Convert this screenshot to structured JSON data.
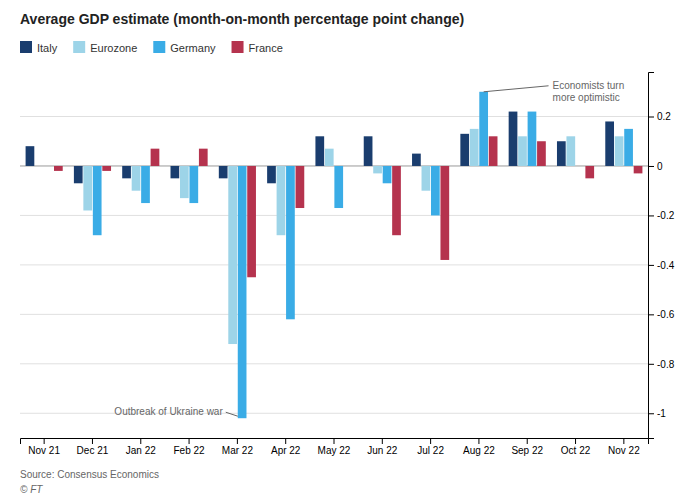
{
  "chart_data": {
    "type": "bar",
    "title": "Average GDP estimate (month-on-month percentage point change)",
    "categories": [
      "Nov 21",
      "Dec 21",
      "Jan 22",
      "Feb 22",
      "Mar 22",
      "Apr 22",
      "May 22",
      "Jun 22",
      "Jul 22",
      "Aug 22",
      "Sep 22",
      "Oct 22",
      "Nov 22"
    ],
    "series": [
      {
        "name": "Italy",
        "color": "#1a3d6e",
        "values": [
          0.08,
          -0.07,
          -0.05,
          -0.05,
          -0.05,
          -0.07,
          0.12,
          0.12,
          0.05,
          0.13,
          0.22,
          0.1,
          0.18
        ]
      },
      {
        "name": "Eurozone",
        "color": "#9dd4e8",
        "values": [
          null,
          -0.18,
          -0.1,
          -0.13,
          -0.72,
          -0.28,
          0.07,
          -0.03,
          -0.1,
          0.15,
          0.12,
          0.12,
          0.12
        ]
      },
      {
        "name": "Germany",
        "color": "#3aace6",
        "values": [
          null,
          -0.28,
          -0.15,
          -0.15,
          -1.02,
          -0.62,
          -0.17,
          -0.07,
          -0.2,
          0.3,
          0.22,
          0,
          0.15
        ]
      },
      {
        "name": "France",
        "color": "#b5334e",
        "values": [
          -0.02,
          -0.02,
          0.07,
          0.07,
          -0.45,
          -0.17,
          null,
          -0.28,
          -0.38,
          0.12,
          0.1,
          -0.05,
          -0.03
        ]
      }
    ],
    "ylim": [
      -1.1,
      0.38
    ],
    "yticks": [
      -1,
      -0.8,
      -0.6,
      -0.4,
      -0.2,
      0,
      0.2
    ],
    "grid": true,
    "legend": "top-left",
    "annotations": [
      "Outbreak of Ukraine war",
      "Economists turn\nmore optimistic"
    ],
    "source": "Source: Consensus Economics",
    "credit": "© FT"
  }
}
